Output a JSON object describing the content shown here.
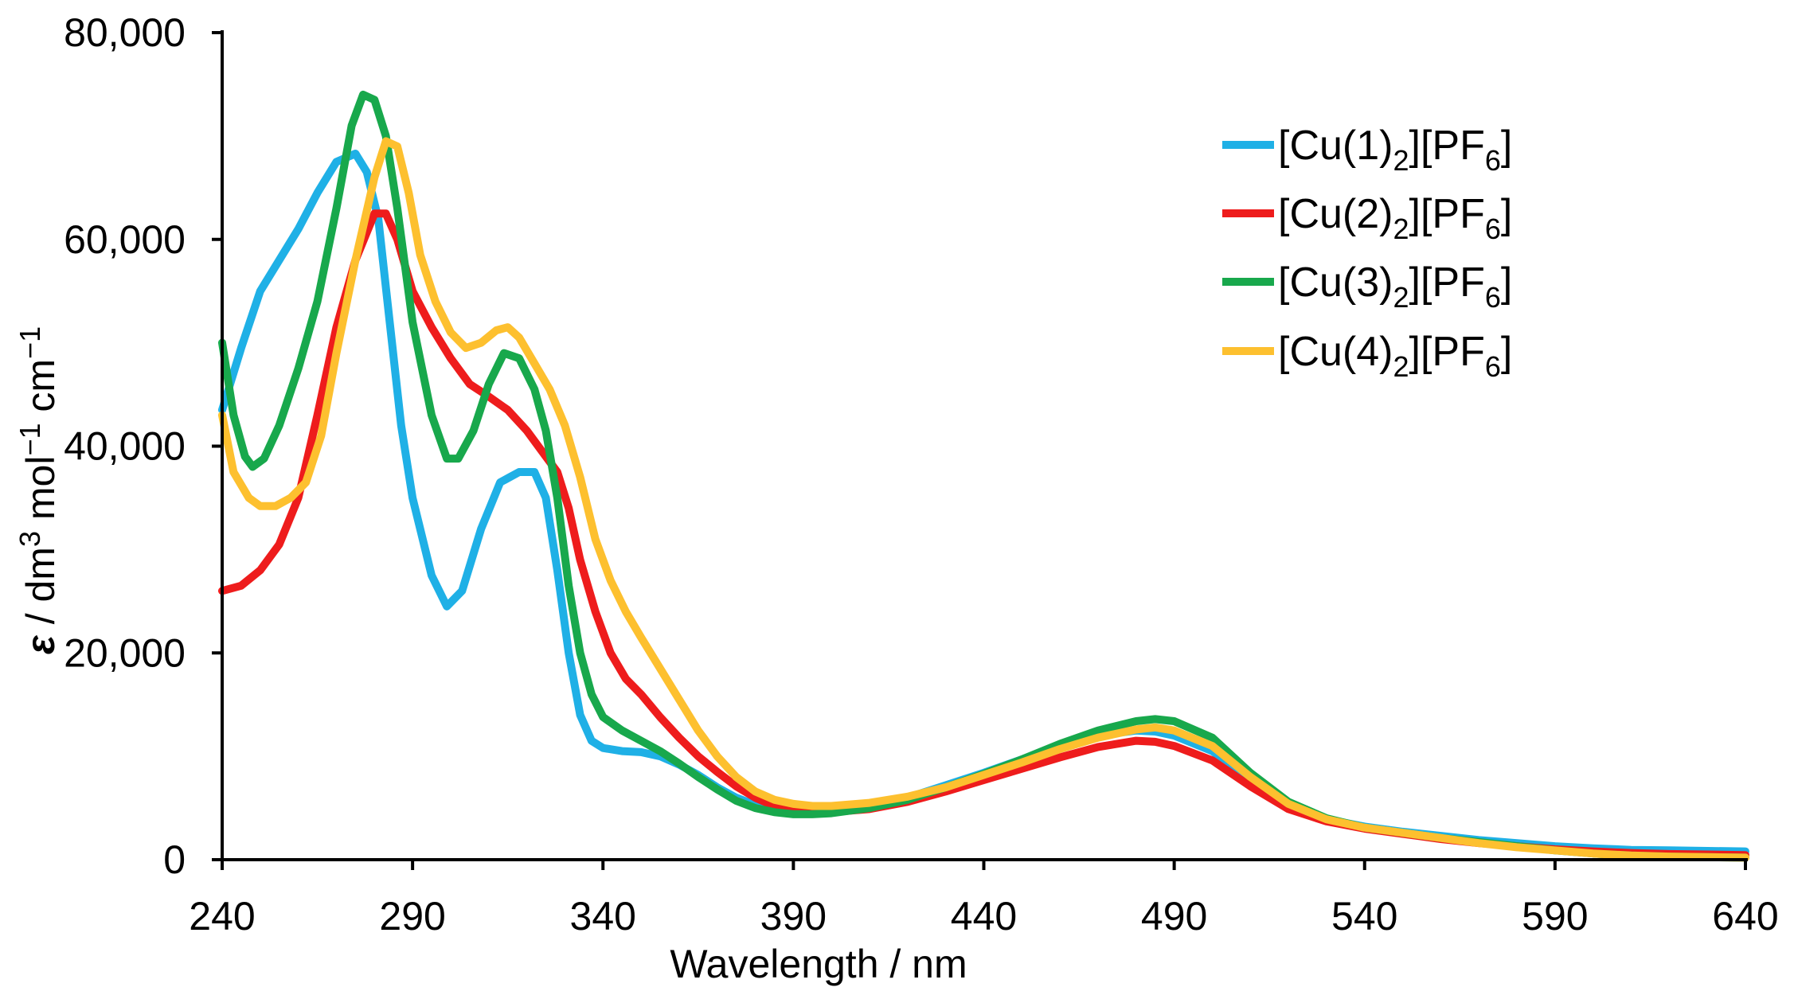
{
  "chart_data": {
    "type": "line",
    "title": "",
    "xlabel": "Wavelength / nm",
    "ylabel": {
      "epsilon": "ε",
      "sep1": " / dm",
      "sup1": "3",
      "mol": " mol",
      "sup2": "−1",
      "cm": " cm",
      "sup3": "−1"
    },
    "xlim": [
      240,
      640
    ],
    "ylim": [
      0,
      80000
    ],
    "x_ticks": [
      "240",
      "290",
      "340",
      "390",
      "440",
      "490",
      "540",
      "590",
      "640"
    ],
    "y_ticks": [
      "0",
      "20,000",
      "40,000",
      "60,000",
      "80,000"
    ],
    "grid": false,
    "legend_position": "top-right",
    "series": [
      {
        "name": "[Cu(1)2][PF6]",
        "label_parts": {
          "a": "[Cu(1)",
          "sub1": "2",
          "b": "][PF",
          "sub2": "6",
          "c": "]"
        },
        "color": "#1fb0e6",
        "points": [
          [
            240,
            43500
          ],
          [
            245,
            49500
          ],
          [
            250,
            55000
          ],
          [
            255,
            58000
          ],
          [
            260,
            61000
          ],
          [
            265,
            64500
          ],
          [
            270,
            67500
          ],
          [
            275,
            68300
          ],
          [
            278,
            66500
          ],
          [
            281,
            62000
          ],
          [
            284,
            52000
          ],
          [
            287,
            42000
          ],
          [
            290,
            35000
          ],
          [
            295,
            27500
          ],
          [
            299,
            24500
          ],
          [
            303,
            26000
          ],
          [
            308,
            32000
          ],
          [
            313,
            36500
          ],
          [
            318,
            37500
          ],
          [
            322,
            37500
          ],
          [
            325,
            35000
          ],
          [
            328,
            28000
          ],
          [
            331,
            20000
          ],
          [
            334,
            14000
          ],
          [
            337,
            11500
          ],
          [
            340,
            10800
          ],
          [
            345,
            10500
          ],
          [
            350,
            10400
          ],
          [
            355,
            10000
          ],
          [
            360,
            9200
          ],
          [
            365,
            8200
          ],
          [
            370,
            7000
          ],
          [
            375,
            6000
          ],
          [
            380,
            5300
          ],
          [
            385,
            4900
          ],
          [
            390,
            4800
          ],
          [
            395,
            4750
          ],
          [
            400,
            4800
          ],
          [
            410,
            5200
          ],
          [
            420,
            6000
          ],
          [
            430,
            7200
          ],
          [
            440,
            8400
          ],
          [
            450,
            9700
          ],
          [
            460,
            11000
          ],
          [
            470,
            12000
          ],
          [
            480,
            12500
          ],
          [
            485,
            12400
          ],
          [
            490,
            12000
          ],
          [
            500,
            10500
          ],
          [
            510,
            7800
          ],
          [
            520,
            5300
          ],
          [
            530,
            3900
          ],
          [
            540,
            3200
          ],
          [
            550,
            2700
          ],
          [
            560,
            2300
          ],
          [
            570,
            1900
          ],
          [
            580,
            1600
          ],
          [
            590,
            1300
          ],
          [
            600,
            1100
          ],
          [
            610,
            950
          ],
          [
            620,
            900
          ],
          [
            630,
            850
          ],
          [
            640,
            800
          ]
        ]
      },
      {
        "name": "[Cu(2)2][PF6]",
        "label_parts": {
          "a": "[Cu(2)",
          "sub1": "2",
          "b": "][PF",
          "sub2": "6",
          "c": "]"
        },
        "color": "#ee1c1c",
        "points": [
          [
            240,
            26000
          ],
          [
            245,
            26500
          ],
          [
            250,
            28000
          ],
          [
            255,
            30500
          ],
          [
            260,
            35000
          ],
          [
            265,
            43000
          ],
          [
            270,
            51500
          ],
          [
            275,
            58000
          ],
          [
            280,
            62500
          ],
          [
            283,
            62500
          ],
          [
            286,
            60000
          ],
          [
            290,
            55000
          ],
          [
            295,
            51500
          ],
          [
            300,
            48500
          ],
          [
            305,
            46000
          ],
          [
            310,
            44800
          ],
          [
            315,
            43500
          ],
          [
            320,
            41500
          ],
          [
            325,
            39000
          ],
          [
            328,
            37500
          ],
          [
            331,
            34000
          ],
          [
            334,
            29000
          ],
          [
            338,
            24000
          ],
          [
            342,
            20000
          ],
          [
            346,
            17500
          ],
          [
            350,
            16000
          ],
          [
            355,
            13800
          ],
          [
            360,
            11800
          ],
          [
            365,
            10000
          ],
          [
            370,
            8500
          ],
          [
            375,
            7100
          ],
          [
            380,
            6000
          ],
          [
            385,
            5200
          ],
          [
            390,
            4800
          ],
          [
            395,
            4600
          ],
          [
            400,
            4600
          ],
          [
            410,
            4900
          ],
          [
            420,
            5600
          ],
          [
            430,
            6600
          ],
          [
            440,
            7700
          ],
          [
            450,
            8800
          ],
          [
            460,
            9900
          ],
          [
            470,
            10900
          ],
          [
            480,
            11500
          ],
          [
            485,
            11400
          ],
          [
            490,
            11000
          ],
          [
            500,
            9600
          ],
          [
            510,
            7100
          ],
          [
            520,
            4900
          ],
          [
            530,
            3700
          ],
          [
            540,
            3000
          ],
          [
            550,
            2500
          ],
          [
            560,
            2000
          ],
          [
            570,
            1600
          ],
          [
            580,
            1300
          ],
          [
            590,
            1000
          ],
          [
            600,
            800
          ],
          [
            610,
            650
          ],
          [
            620,
            550
          ],
          [
            630,
            500
          ],
          [
            640,
            450
          ]
        ]
      },
      {
        "name": "[Cu(3)2][PF6]",
        "label_parts": {
          "a": "[Cu(3)",
          "sub1": "2",
          "b": "][PF",
          "sub2": "6",
          "c": "]"
        },
        "color": "#18a84c",
        "points": [
          [
            240,
            50000
          ],
          [
            243,
            43000
          ],
          [
            246,
            39000
          ],
          [
            248,
            38000
          ],
          [
            251,
            38800
          ],
          [
            255,
            42000
          ],
          [
            260,
            47500
          ],
          [
            265,
            54000
          ],
          [
            270,
            63000
          ],
          [
            274,
            71000
          ],
          [
            277,
            74000
          ],
          [
            280,
            73500
          ],
          [
            283,
            70000
          ],
          [
            286,
            63000
          ],
          [
            290,
            52000
          ],
          [
            295,
            43000
          ],
          [
            299,
            38800
          ],
          [
            302,
            38800
          ],
          [
            306,
            41500
          ],
          [
            310,
            46000
          ],
          [
            314,
            49000
          ],
          [
            318,
            48500
          ],
          [
            322,
            45500
          ],
          [
            325,
            41500
          ],
          [
            328,
            35000
          ],
          [
            331,
            26500
          ],
          [
            334,
            20000
          ],
          [
            337,
            16000
          ],
          [
            340,
            13800
          ],
          [
            345,
            12500
          ],
          [
            350,
            11500
          ],
          [
            355,
            10500
          ],
          [
            360,
            9300
          ],
          [
            365,
            8000
          ],
          [
            370,
            6800
          ],
          [
            375,
            5700
          ],
          [
            380,
            5000
          ],
          [
            385,
            4600
          ],
          [
            390,
            4400
          ],
          [
            395,
            4400
          ],
          [
            400,
            4500
          ],
          [
            410,
            5000
          ],
          [
            420,
            5800
          ],
          [
            430,
            7000
          ],
          [
            440,
            8300
          ],
          [
            450,
            9700
          ],
          [
            460,
            11200
          ],
          [
            470,
            12500
          ],
          [
            480,
            13400
          ],
          [
            485,
            13600
          ],
          [
            490,
            13400
          ],
          [
            500,
            11800
          ],
          [
            510,
            8400
          ],
          [
            520,
            5600
          ],
          [
            530,
            4000
          ],
          [
            540,
            3100
          ],
          [
            550,
            2600
          ],
          [
            560,
            2100
          ],
          [
            570,
            1700
          ],
          [
            580,
            1300
          ],
          [
            590,
            900
          ],
          [
            600,
            600
          ],
          [
            610,
            400
          ],
          [
            620,
            300
          ],
          [
            630,
            250
          ],
          [
            640,
            200
          ]
        ]
      },
      {
        "name": "[Cu(4)2][PF6]",
        "label_parts": {
          "a": "[Cu(4)",
          "sub1": "2",
          "b": "][PF",
          "sub2": "6",
          "c": "]"
        },
        "color": "#fdc02f",
        "points": [
          [
            240,
            43000
          ],
          [
            243,
            37500
          ],
          [
            247,
            35000
          ],
          [
            250,
            34200
          ],
          [
            254,
            34200
          ],
          [
            258,
            35000
          ],
          [
            262,
            36500
          ],
          [
            266,
            41000
          ],
          [
            270,
            49000
          ],
          [
            275,
            58000
          ],
          [
            280,
            66000
          ],
          [
            283,
            69500
          ],
          [
            286,
            69000
          ],
          [
            289,
            64500
          ],
          [
            292,
            58500
          ],
          [
            296,
            54000
          ],
          [
            300,
            51000
          ],
          [
            304,
            49500
          ],
          [
            308,
            50000
          ],
          [
            312,
            51200
          ],
          [
            315,
            51500
          ],
          [
            318,
            50500
          ],
          [
            322,
            48000
          ],
          [
            326,
            45500
          ],
          [
            330,
            42000
          ],
          [
            334,
            37000
          ],
          [
            338,
            31000
          ],
          [
            342,
            27000
          ],
          [
            346,
            24000
          ],
          [
            350,
            21500
          ],
          [
            355,
            18500
          ],
          [
            360,
            15500
          ],
          [
            365,
            12500
          ],
          [
            370,
            10000
          ],
          [
            375,
            8000
          ],
          [
            380,
            6600
          ],
          [
            385,
            5800
          ],
          [
            390,
            5400
          ],
          [
            395,
            5200
          ],
          [
            400,
            5200
          ],
          [
            410,
            5500
          ],
          [
            420,
            6100
          ],
          [
            430,
            7000
          ],
          [
            440,
            8200
          ],
          [
            450,
            9400
          ],
          [
            460,
            10700
          ],
          [
            470,
            11800
          ],
          [
            480,
            12600
          ],
          [
            485,
            12800
          ],
          [
            490,
            12500
          ],
          [
            500,
            11000
          ],
          [
            510,
            8000
          ],
          [
            520,
            5400
          ],
          [
            530,
            3900
          ],
          [
            540,
            3100
          ],
          [
            550,
            2600
          ],
          [
            560,
            2100
          ],
          [
            570,
            1600
          ],
          [
            580,
            1200
          ],
          [
            590,
            900
          ],
          [
            600,
            600
          ],
          [
            610,
            400
          ],
          [
            620,
            300
          ],
          [
            630,
            250
          ],
          [
            640,
            200
          ]
        ]
      }
    ]
  }
}
